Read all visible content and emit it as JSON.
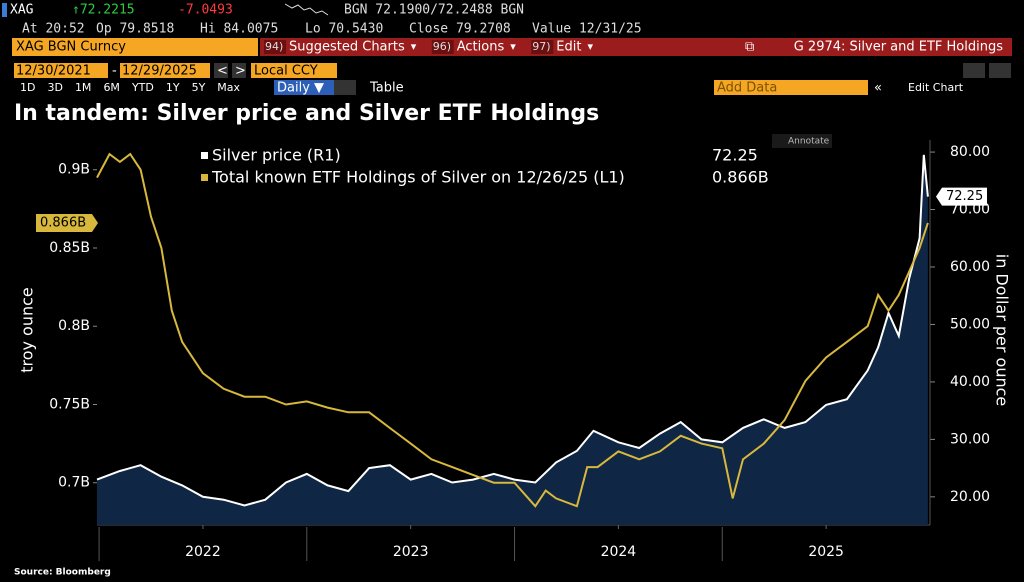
{
  "header": {
    "ticker": "XAG",
    "last": "↑72.2215",
    "change": "-7.0493",
    "quote": "BGN 72.1900/72.2488 BGN",
    "at": "At 20:52",
    "open": "Op 79.8518",
    "high": "Hi 84.0075",
    "low": "Lo 70.5430",
    "close": "Close 79.2708",
    "value": "Value 12/31/25"
  },
  "toolbar": {
    "security": "XAG BGN Curncy",
    "menus": [
      {
        "num": "94)",
        "label": "Suggested Charts"
      },
      {
        "num": "96)",
        "label": "Actions"
      },
      {
        "num": "97)",
        "label": "Edit"
      }
    ],
    "chart_id": "G 2974: Silver and ETF Holdings"
  },
  "date_range": {
    "start": "12/30/2021",
    "end": "12/29/2025",
    "currency": "Local CCY"
  },
  "periods": [
    "1D",
    "3D",
    "1M",
    "6M",
    "YTD",
    "1Y",
    "5Y",
    "Max"
  ],
  "frequency": "Daily ▼",
  "table": "Table",
  "add_data": "Add Data",
  "edit_chart": "Edit Chart",
  "annotate": "Annotate",
  "source": "Source: Bloomberg",
  "chart_data": {
    "type": "line",
    "title": "In tandem: Silver price and Silver ETF Holdings",
    "ylabel": "troy ounce",
    "y2label": "in Dollar per ounce",
    "grid": false,
    "xlim": [
      2021.99,
      2026.0
    ],
    "xticks": [
      {
        "value": 2022.5,
        "label": "2022"
      },
      {
        "value": 2023.5,
        "label": "2023"
      },
      {
        "value": 2024.5,
        "label": "2024"
      },
      {
        "value": 2025.5,
        "label": "2025"
      }
    ],
    "ylim": [
      0.673,
      0.919
    ],
    "yticks": [
      {
        "value": 0.7,
        "label": "0.7B"
      },
      {
        "value": 0.75,
        "label": "0.75B"
      },
      {
        "value": 0.8,
        "label": "0.8B"
      },
      {
        "value": 0.85,
        "label": "0.85B"
      },
      {
        "value": 0.9,
        "label": "0.9B"
      }
    ],
    "y2lim": [
      15.1,
      82.1
    ],
    "y2ticks": [
      {
        "value": 20,
        "label": "20.00"
      },
      {
        "value": 30,
        "label": "30.00"
      },
      {
        "value": 40,
        "label": "40.00"
      },
      {
        "value": 50,
        "label": "50.00"
      },
      {
        "value": 60,
        "label": "60.00"
      },
      {
        "value": 70,
        "label": "70.00"
      },
      {
        "value": 80,
        "label": "80.00"
      }
    ],
    "series": [
      {
        "name": "Silver price (R1)",
        "color": "#ffffff",
        "fill": "#0f2645",
        "axis": "y2",
        "last_label": "72.25",
        "x": [
          2021.99,
          2022.1,
          2022.2,
          2022.3,
          2022.4,
          2022.5,
          2022.6,
          2022.7,
          2022.8,
          2022.9,
          2023.0,
          2023.1,
          2023.2,
          2023.3,
          2023.4,
          2023.5,
          2023.6,
          2023.7,
          2023.8,
          2023.9,
          2024.0,
          2024.1,
          2024.2,
          2024.3,
          2024.38,
          2024.5,
          2024.6,
          2024.7,
          2024.8,
          2024.9,
          2025.0,
          2025.1,
          2025.2,
          2025.3,
          2025.4,
          2025.5,
          2025.6,
          2025.7,
          2025.75,
          2025.8,
          2025.85,
          2025.9,
          2025.95,
          2025.97,
          2025.99
        ],
        "values": [
          23.0,
          24.5,
          25.5,
          23.5,
          22,
          20,
          19.5,
          18.5,
          19.5,
          22.5,
          24,
          22,
          21,
          25,
          25.5,
          23,
          24,
          22.5,
          23,
          24,
          23,
          22.5,
          26,
          28,
          31.5,
          29.5,
          28.5,
          31,
          33,
          30,
          29.5,
          32,
          33.5,
          32,
          33,
          36,
          37,
          42,
          46,
          52,
          48,
          58,
          65,
          79.5,
          72.25
        ]
      },
      {
        "name": "Total known ETF Holdings of Silver on 12/26/25 (L1)",
        "color": "#d8b83c",
        "axis": "y",
        "last_label": "0.866B",
        "x": [
          2021.99,
          2022.05,
          2022.1,
          2022.15,
          2022.2,
          2022.25,
          2022.3,
          2022.35,
          2022.4,
          2022.5,
          2022.6,
          2022.7,
          2022.8,
          2022.9,
          2023.0,
          2023.1,
          2023.2,
          2023.3,
          2023.4,
          2023.5,
          2023.6,
          2023.7,
          2023.8,
          2023.9,
          2024.0,
          2024.1,
          2024.15,
          2024.2,
          2024.3,
          2024.35,
          2024.4,
          2024.5,
          2024.6,
          2024.7,
          2024.8,
          2024.9,
          2025.0,
          2025.05,
          2025.1,
          2025.2,
          2025.3,
          2025.4,
          2025.5,
          2025.6,
          2025.7,
          2025.75,
          2025.8,
          2025.85,
          2025.9,
          2025.95,
          2025.99
        ],
        "values": [
          0.895,
          0.91,
          0.905,
          0.91,
          0.9,
          0.87,
          0.85,
          0.81,
          0.79,
          0.77,
          0.76,
          0.755,
          0.755,
          0.75,
          0.752,
          0.748,
          0.745,
          0.745,
          0.735,
          0.725,
          0.715,
          0.71,
          0.705,
          0.7,
          0.7,
          0.685,
          0.695,
          0.69,
          0.685,
          0.71,
          0.71,
          0.72,
          0.715,
          0.72,
          0.73,
          0.725,
          0.722,
          0.69,
          0.715,
          0.725,
          0.74,
          0.765,
          0.78,
          0.79,
          0.8,
          0.82,
          0.81,
          0.82,
          0.835,
          0.85,
          0.866
        ]
      }
    ]
  }
}
